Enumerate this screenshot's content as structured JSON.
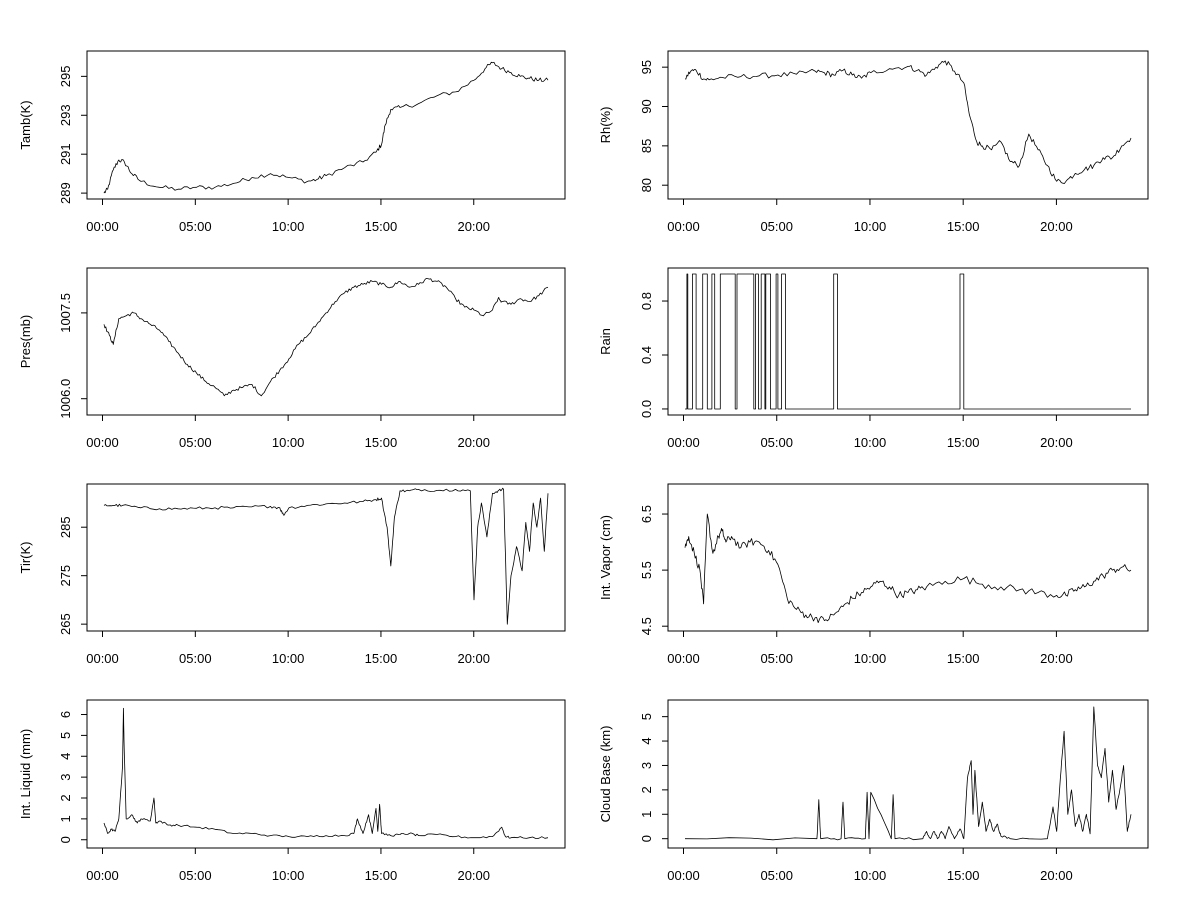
{
  "chart_data": [
    {
      "type": "line",
      "ylabel": "Tamb(K)",
      "x_ticks": [
        "00:00",
        "05:00",
        "10:00",
        "15:00",
        "20:00"
      ],
      "y_ticks": [
        "289",
        "291",
        "293",
        "295"
      ],
      "y_tick_values": [
        289,
        291,
        293,
        295
      ],
      "ylim": [
        288.8,
        296.2
      ],
      "x_hours": [
        0.0,
        0.2,
        0.5,
        0.8,
        1.1,
        1.5,
        2.0,
        3.0,
        4.0,
        5.0,
        6.0,
        7.0,
        8.0,
        9.0,
        10.0,
        11.0,
        11.5,
        12.0,
        13.0,
        14.0,
        14.7,
        15.0,
        15.2,
        15.5,
        16.0,
        17.0,
        18.0,
        19.0,
        20.0,
        20.6,
        21.0,
        21.5,
        22.0,
        22.5,
        23.0,
        23.5,
        24.0
      ],
      "values": [
        289.0,
        289.2,
        290.2,
        290.7,
        290.6,
        290.0,
        289.6,
        289.3,
        289.2,
        289.3,
        289.3,
        289.5,
        289.8,
        290.0,
        289.8,
        289.6,
        289.7,
        289.9,
        290.3,
        290.6,
        291.1,
        291.5,
        292.5,
        293.3,
        293.4,
        293.6,
        294.0,
        294.2,
        294.8,
        295.4,
        295.7,
        295.4,
        295.2,
        295.0,
        294.9,
        294.8,
        294.8
      ],
      "wiggle": 0.12
    },
    {
      "type": "line",
      "ylabel": "Rh(%)",
      "x_ticks": [
        "00:00",
        "05:00",
        "10:00",
        "15:00",
        "20:00"
      ],
      "y_ticks": [
        "80",
        "85",
        "90",
        "95"
      ],
      "y_tick_values": [
        80,
        85,
        90,
        95
      ],
      "ylim": [
        78.5,
        96.8
      ],
      "x_hours": [
        0.0,
        0.3,
        0.6,
        1.0,
        1.3,
        2.0,
        3.0,
        4.0,
        5.0,
        6.0,
        7.0,
        7.5,
        8.0,
        8.5,
        9.0,
        9.5,
        10.0,
        11.0,
        12.0,
        12.5,
        13.0,
        13.5,
        14.0,
        14.5,
        15.0,
        15.3,
        15.7,
        16.0,
        16.5,
        17.0,
        17.5,
        18.0,
        18.5,
        19.0,
        19.5,
        20.0,
        20.5,
        21.0,
        21.5,
        22.0,
        22.5,
        23.0,
        23.5,
        24.0
      ],
      "values": [
        93.5,
        94.5,
        94.6,
        93.5,
        93.4,
        93.7,
        93.8,
        93.9,
        94.0,
        94.1,
        94.5,
        94.3,
        94.0,
        94.6,
        94.0,
        93.6,
        94.3,
        94.8,
        95.1,
        94.6,
        94.0,
        95.0,
        95.8,
        94.5,
        93.0,
        89.0,
        85.5,
        85.0,
        84.5,
        85.5,
        83.0,
        82.5,
        86.5,
        84.5,
        82.5,
        80.5,
        80.5,
        81.5,
        82.0,
        82.5,
        83.5,
        83.5,
        85.0,
        86.0
      ],
      "wiggle": 0.35
    },
    {
      "type": "line",
      "ylabel": "Pres(mb)",
      "x_ticks": [
        "00:00",
        "05:00",
        "10:00",
        "15:00",
        "20:00"
      ],
      "y_ticks": [
        "1006.0",
        "1007.5"
      ],
      "y_tick_values": [
        1006.0,
        1007.5
      ],
      "ylim": [
        1005.75,
        1008.25
      ],
      "x_hours": [
        0.0,
        0.3,
        0.5,
        0.8,
        1.2,
        1.6,
        2.0,
        2.5,
        3.0,
        3.5,
        4.0,
        4.5,
        5.0,
        5.5,
        6.0,
        6.5,
        7.0,
        7.5,
        8.0,
        8.5,
        9.0,
        9.5,
        10.0,
        10.5,
        11.0,
        11.5,
        12.0,
        12.5,
        13.0,
        13.5,
        14.0,
        14.5,
        15.0,
        15.5,
        16.0,
        16.5,
        17.0,
        17.5,
        18.0,
        18.5,
        19.0,
        19.5,
        20.0,
        20.5,
        21.0,
        21.3,
        21.5,
        22.0,
        22.5,
        23.0,
        23.5,
        24.0
      ],
      "values": [
        1007.3,
        1007.1,
        1006.95,
        1007.4,
        1007.45,
        1007.5,
        1007.4,
        1007.3,
        1007.2,
        1007.0,
        1006.8,
        1006.6,
        1006.45,
        1006.3,
        1006.2,
        1006.05,
        1006.15,
        1006.2,
        1006.25,
        1006.05,
        1006.3,
        1006.5,
        1006.7,
        1006.95,
        1007.1,
        1007.3,
        1007.5,
        1007.7,
        1007.85,
        1007.95,
        1008.0,
        1008.05,
        1008.0,
        1007.95,
        1008.05,
        1007.95,
        1008.0,
        1008.1,
        1008.05,
        1007.95,
        1007.75,
        1007.6,
        1007.55,
        1007.45,
        1007.55,
        1007.75,
        1007.7,
        1007.65,
        1007.75,
        1007.7,
        1007.8,
        1007.95
      ],
      "wiggle": 0.03
    },
    {
      "type": "line",
      "ylabel": "Rain",
      "x_ticks": [
        "00:00",
        "05:00",
        "10:00",
        "15:00",
        "20:00"
      ],
      "y_ticks": [
        "0.0",
        "0.4",
        "0.8"
      ],
      "y_tick_values": [
        0.0,
        0.4,
        0.8
      ],
      "ylim": [
        -0.03,
        1.03
      ],
      "step": true,
      "x_hours": [
        0.0,
        0.1,
        0.15,
        0.4,
        0.6,
        0.95,
        1.2,
        1.45,
        1.6,
        1.9,
        2.7,
        2.8,
        3.7,
        3.8,
        3.95,
        4.1,
        4.3,
        4.35,
        4.6,
        4.9,
        5.0,
        5.2,
        5.4,
        8.0,
        8.2,
        14.8,
        15.0,
        24.0
      ],
      "values": [
        0,
        1,
        0,
        1,
        0,
        1,
        0,
        1,
        0,
        1,
        0,
        1,
        0,
        1,
        0,
        1,
        0,
        1,
        0,
        1,
        0,
        1,
        0,
        1,
        0,
        1,
        0,
        0
      ],
      "wiggle": 0
    },
    {
      "type": "line",
      "ylabel": "Tir(K)",
      "x_ticks": [
        "00:00",
        "05:00",
        "10:00",
        "15:00",
        "20:00"
      ],
      "y_ticks": [
        "265",
        "275",
        "285"
      ],
      "y_tick_values": [
        265,
        275,
        285
      ],
      "ylim": [
        264,
        293.5
      ],
      "x_hours": [
        0.0,
        0.5,
        1.0,
        2.0,
        3.0,
        4.0,
        5.0,
        6.0,
        7.0,
        8.0,
        9.0,
        9.5,
        9.7,
        10.0,
        11.0,
        12.0,
        13.0,
        14.0,
        14.7,
        15.0,
        15.3,
        15.5,
        15.7,
        16.0,
        16.5,
        17.0,
        18.0,
        19.0,
        19.8,
        20.0,
        20.2,
        20.4,
        20.7,
        21.0,
        21.3,
        21.6,
        21.8,
        22.0,
        22.3,
        22.6,
        22.8,
        23.0,
        23.2,
        23.4,
        23.6,
        23.8,
        24.0
      ],
      "values": [
        289.5,
        289.5,
        289.5,
        289.0,
        288.8,
        288.8,
        288.9,
        289.0,
        289.0,
        289.2,
        289.3,
        289.0,
        287.5,
        289.0,
        289.5,
        289.8,
        290.0,
        290.3,
        290.7,
        291.0,
        285.0,
        277.0,
        287.0,
        292.5,
        292.5,
        292.8,
        292.6,
        292.8,
        292.5,
        270.0,
        285.0,
        290.0,
        283.0,
        292.0,
        292.5,
        292.8,
        265.0,
        275.0,
        281.0,
        276.0,
        286.0,
        280.0,
        290.0,
        285.0,
        291.0,
        280.0,
        292.0
      ],
      "wiggle": 0.3
    },
    {
      "type": "line",
      "ylabel": "Int. Vapor (cm)",
      "x_ticks": [
        "00:00",
        "05:00",
        "10:00",
        "15:00",
        "20:00"
      ],
      "y_ticks": [
        "4.5",
        "5.5",
        "6.5"
      ],
      "y_tick_values": [
        4.5,
        5.5,
        6.5
      ],
      "ylim": [
        4.45,
        7.0
      ],
      "x_hours": [
        0.0,
        0.2,
        0.5,
        0.8,
        1.0,
        1.2,
        1.5,
        1.8,
        2.0,
        2.2,
        2.5,
        3.0,
        3.5,
        4.0,
        4.5,
        5.0,
        5.5,
        6.0,
        6.5,
        7.0,
        7.5,
        8.0,
        8.5,
        9.0,
        9.5,
        10.0,
        10.5,
        11.0,
        11.5,
        12.0,
        12.5,
        13.0,
        14.0,
        15.0,
        16.0,
        17.0,
        18.0,
        19.0,
        20.0,
        20.5,
        21.0,
        21.5,
        22.0,
        22.5,
        23.0,
        23.5,
        24.0
      ],
      "values": [
        5.9,
        6.1,
        5.8,
        5.5,
        4.9,
        6.5,
        5.8,
        6.1,
        6.2,
        6.0,
        6.1,
        5.9,
        6.0,
        6.0,
        5.85,
        5.6,
        5.0,
        4.8,
        4.7,
        4.65,
        4.6,
        4.7,
        4.85,
        5.0,
        5.1,
        5.2,
        5.3,
        5.2,
        5.05,
        5.1,
        5.15,
        5.2,
        5.3,
        5.35,
        5.25,
        5.2,
        5.15,
        5.1,
        5.05,
        5.05,
        5.15,
        5.2,
        5.3,
        5.4,
        5.5,
        5.55,
        5.5
      ],
      "wiggle": 0.07
    },
    {
      "type": "line",
      "ylabel": "Int. Liquid (mm)",
      "x_ticks": [
        "00:00",
        "05:00",
        "10:00",
        "15:00",
        "20:00"
      ],
      "y_ticks": [
        "0",
        "1",
        "2",
        "3",
        "4",
        "5",
        "6"
      ],
      "y_tick_values": [
        0,
        1,
        2,
        3,
        4,
        5,
        6
      ],
      "ylim": [
        -0.3,
        6.6
      ],
      "x_hours": [
        0.0,
        0.2,
        0.4,
        0.6,
        0.8,
        1.0,
        1.05,
        1.1,
        1.2,
        1.5,
        1.8,
        2.0,
        2.5,
        2.7,
        2.8,
        3.0,
        3.5,
        4.0,
        5.0,
        6.0,
        7.0,
        8.0,
        9.0,
        10.0,
        11.0,
        12.0,
        13.0,
        13.5,
        13.7,
        14.0,
        14.3,
        14.5,
        14.7,
        14.8,
        14.9,
        15.0,
        15.5,
        16.0,
        16.5,
        17.0,
        18.0,
        19.0,
        20.0,
        21.0,
        21.5,
        21.7,
        22.0,
        23.0,
        24.0
      ],
      "values": [
        0.8,
        0.3,
        0.5,
        0.4,
        1.0,
        3.5,
        6.3,
        4.0,
        1.0,
        1.2,
        0.8,
        1.0,
        0.9,
        2.0,
        0.8,
        0.9,
        0.7,
        0.7,
        0.6,
        0.5,
        0.3,
        0.3,
        0.2,
        0.15,
        0.15,
        0.2,
        0.2,
        0.3,
        1.0,
        0.3,
        1.2,
        0.3,
        1.5,
        0.4,
        1.7,
        0.3,
        0.2,
        0.25,
        0.3,
        0.2,
        0.25,
        0.15,
        0.1,
        0.15,
        0.6,
        0.15,
        0.1,
        0.1,
        0.1
      ],
      "wiggle": 0.05
    },
    {
      "type": "line",
      "ylabel": "Cloud Base (km)",
      "x_ticks": [
        "00:00",
        "05:00",
        "10:00",
        "15:00",
        "20:00"
      ],
      "y_ticks": [
        "0",
        "1",
        "2",
        "3",
        "4",
        "5"
      ],
      "y_tick_values": [
        0,
        1,
        2,
        3,
        4,
        5
      ],
      "ylim": [
        -0.3,
        5.6
      ],
      "x_hours": [
        0.0,
        7.1,
        7.2,
        7.3,
        8.4,
        8.5,
        8.6,
        9.7,
        9.8,
        9.9,
        10.0,
        11.1,
        11.2,
        11.3,
        12.8,
        13.0,
        13.2,
        13.4,
        13.6,
        13.8,
        14.0,
        14.2,
        14.5,
        14.8,
        15.0,
        15.2,
        15.4,
        15.5,
        15.6,
        15.8,
        16.0,
        16.2,
        16.4,
        16.6,
        16.8,
        17.0,
        17.5,
        19.5,
        19.8,
        20.0,
        20.2,
        20.4,
        20.6,
        20.8,
        21.0,
        21.2,
        21.4,
        21.6,
        21.8,
        22.0,
        22.2,
        22.4,
        22.6,
        22.8,
        23.0,
        23.2,
        23.4,
        23.6,
        23.8,
        24.0
      ],
      "values": [
        0,
        0,
        1.6,
        0,
        0,
        1.5,
        0,
        0,
        1.9,
        0,
        1.9,
        0,
        1.8,
        0,
        0,
        0.3,
        0,
        0.3,
        0,
        0.3,
        0,
        0.5,
        0,
        0.4,
        0,
        2.5,
        3.2,
        1.0,
        2.8,
        0.5,
        1.5,
        0.3,
        0.8,
        0.3,
        0.6,
        0.1,
        0,
        0,
        1.3,
        0.3,
        2.5,
        4.4,
        1.0,
        2.0,
        0.5,
        1.0,
        0.3,
        1.0,
        0.2,
        5.4,
        3.0,
        2.5,
        3.7,
        1.5,
        2.8,
        1.2,
        2.0,
        3.0,
        0.3,
        1.0
      ],
      "wiggle": 0.05
    }
  ]
}
